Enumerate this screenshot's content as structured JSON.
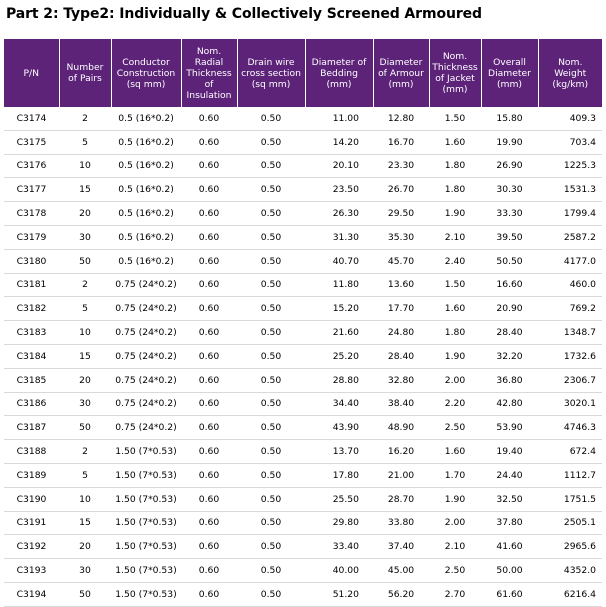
{
  "title": "Part 2: Type2: Individually & Collectively Screened Armoured",
  "header": [
    [
      "P/N"
    ],
    [
      "Number",
      "of Pairs"
    ],
    [
      "Conductor",
      "Construction",
      "(sq mm)"
    ],
    [
      "Nom.",
      "Radial",
      "Thickness",
      "of",
      "Insulation"
    ],
    [
      "Drain wire",
      "cross section",
      "(sq mm)"
    ],
    [
      "Diameter of",
      "Bedding",
      "(mm)"
    ],
    [
      "Diameter",
      "of Armour",
      "(mm)"
    ],
    [
      "Nom.",
      "Thickness",
      "of Jacket",
      "(mm)"
    ],
    [
      "Overall",
      "Diameter",
      "(mm)"
    ],
    [
      "Nom.",
      "Weight",
      "(kg/km)"
    ]
  ],
  "rows": [
    [
      "C3174",
      "2",
      "0.5 (16*0.2)",
      "0.60",
      "0.50",
      "11.00",
      "12.80",
      "1.50",
      "15.80",
      "409.3"
    ],
    [
      "C3175",
      "5",
      "0.5 (16*0.2)",
      "0.60",
      "0.50",
      "14.20",
      "16.70",
      "1.60",
      "19.90",
      "703.4"
    ],
    [
      "C3176",
      "10",
      "0.5 (16*0.2)",
      "0.60",
      "0.50",
      "20.10",
      "23.30",
      "1.80",
      "26.90",
      "1225.3"
    ],
    [
      "C3177",
      "15",
      "0.5 (16*0.2)",
      "0.60",
      "0.50",
      "23.50",
      "26.70",
      "1.80",
      "30.30",
      "1531.3"
    ],
    [
      "C3178",
      "20",
      "0.5 (16*0.2)",
      "0.60",
      "0.50",
      "26.30",
      "29.50",
      "1.90",
      "33.30",
      "1799.4"
    ],
    [
      "C3179",
      "30",
      "0.5 (16*0.2)",
      "0.60",
      "0.50",
      "31.30",
      "35.30",
      "2.10",
      "39.50",
      "2587.2"
    ],
    [
      "C3180",
      "50",
      "0.5 (16*0.2)",
      "0.60",
      "0.50",
      "40.70",
      "45.70",
      "2.40",
      "50.50",
      "4177.0"
    ],
    [
      "C3181",
      "2",
      "0.75 (24*0.2)",
      "0.60",
      "0.50",
      "11.80",
      "13.60",
      "1.50",
      "16.60",
      "460.0"
    ],
    [
      "C3182",
      "5",
      "0.75 (24*0.2)",
      "0.60",
      "0.50",
      "15.20",
      "17.70",
      "1.60",
      "20.90",
      "769.2"
    ],
    [
      "C3183",
      "10",
      "0.75 (24*0.2)",
      "0.60",
      "0.50",
      "21.60",
      "24.80",
      "1.80",
      "28.40",
      "1348.7"
    ],
    [
      "C3184",
      "15",
      "0.75 (24*0.2)",
      "0.60",
      "0.50",
      "25.20",
      "28.40",
      "1.90",
      "32.20",
      "1732.6"
    ],
    [
      "C3185",
      "20",
      "0.75 (24*0.2)",
      "0.60",
      "0.50",
      "28.80",
      "32.80",
      "2.00",
      "36.80",
      "2306.7"
    ],
    [
      "C3186",
      "30",
      "0.75 (24*0.2)",
      "0.60",
      "0.50",
      "34.40",
      "38.40",
      "2.20",
      "42.80",
      "3020.1"
    ],
    [
      "C3187",
      "50",
      "0.75 (24*0.2)",
      "0.60",
      "0.50",
      "43.90",
      "48.90",
      "2.50",
      "53.90",
      "4746.3"
    ],
    [
      "C3188",
      "2",
      "1.50 (7*0.53)",
      "0.60",
      "0.50",
      "13.70",
      "16.20",
      "1.60",
      "19.40",
      "672.4"
    ],
    [
      "C3189",
      "5",
      "1.50 (7*0.53)",
      "0.60",
      "0.50",
      "17.80",
      "21.00",
      "1.70",
      "24.40",
      "1112.7"
    ],
    [
      "C3190",
      "10",
      "1.50 (7*0.53)",
      "0.60",
      "0.50",
      "25.50",
      "28.70",
      "1.90",
      "32.50",
      "1751.5"
    ],
    [
      "C3191",
      "15",
      "1.50 (7*0.53)",
      "0.60",
      "0.50",
      "29.80",
      "33.80",
      "2.00",
      "37.80",
      "2505.1"
    ],
    [
      "C3192",
      "20",
      "1.50 (7*0.53)",
      "0.60",
      "0.50",
      "33.40",
      "37.40",
      "2.10",
      "41.60",
      "2965.6"
    ],
    [
      "C3193",
      "30",
      "1.50 (7*0.53)",
      "0.60",
      "0.50",
      "40.00",
      "45.00",
      "2.50",
      "50.00",
      "4352.0"
    ],
    [
      "C3194",
      "50",
      "1.50 (7*0.53)",
      "0.60",
      "0.50",
      "51.20",
      "56.20",
      "2.70",
      "61.60",
      "6216.4"
    ]
  ],
  "colors": {
    "header_bg": "#5c2379",
    "header_text": "#ffffff",
    "row_divider": "#d9d9d9"
  }
}
